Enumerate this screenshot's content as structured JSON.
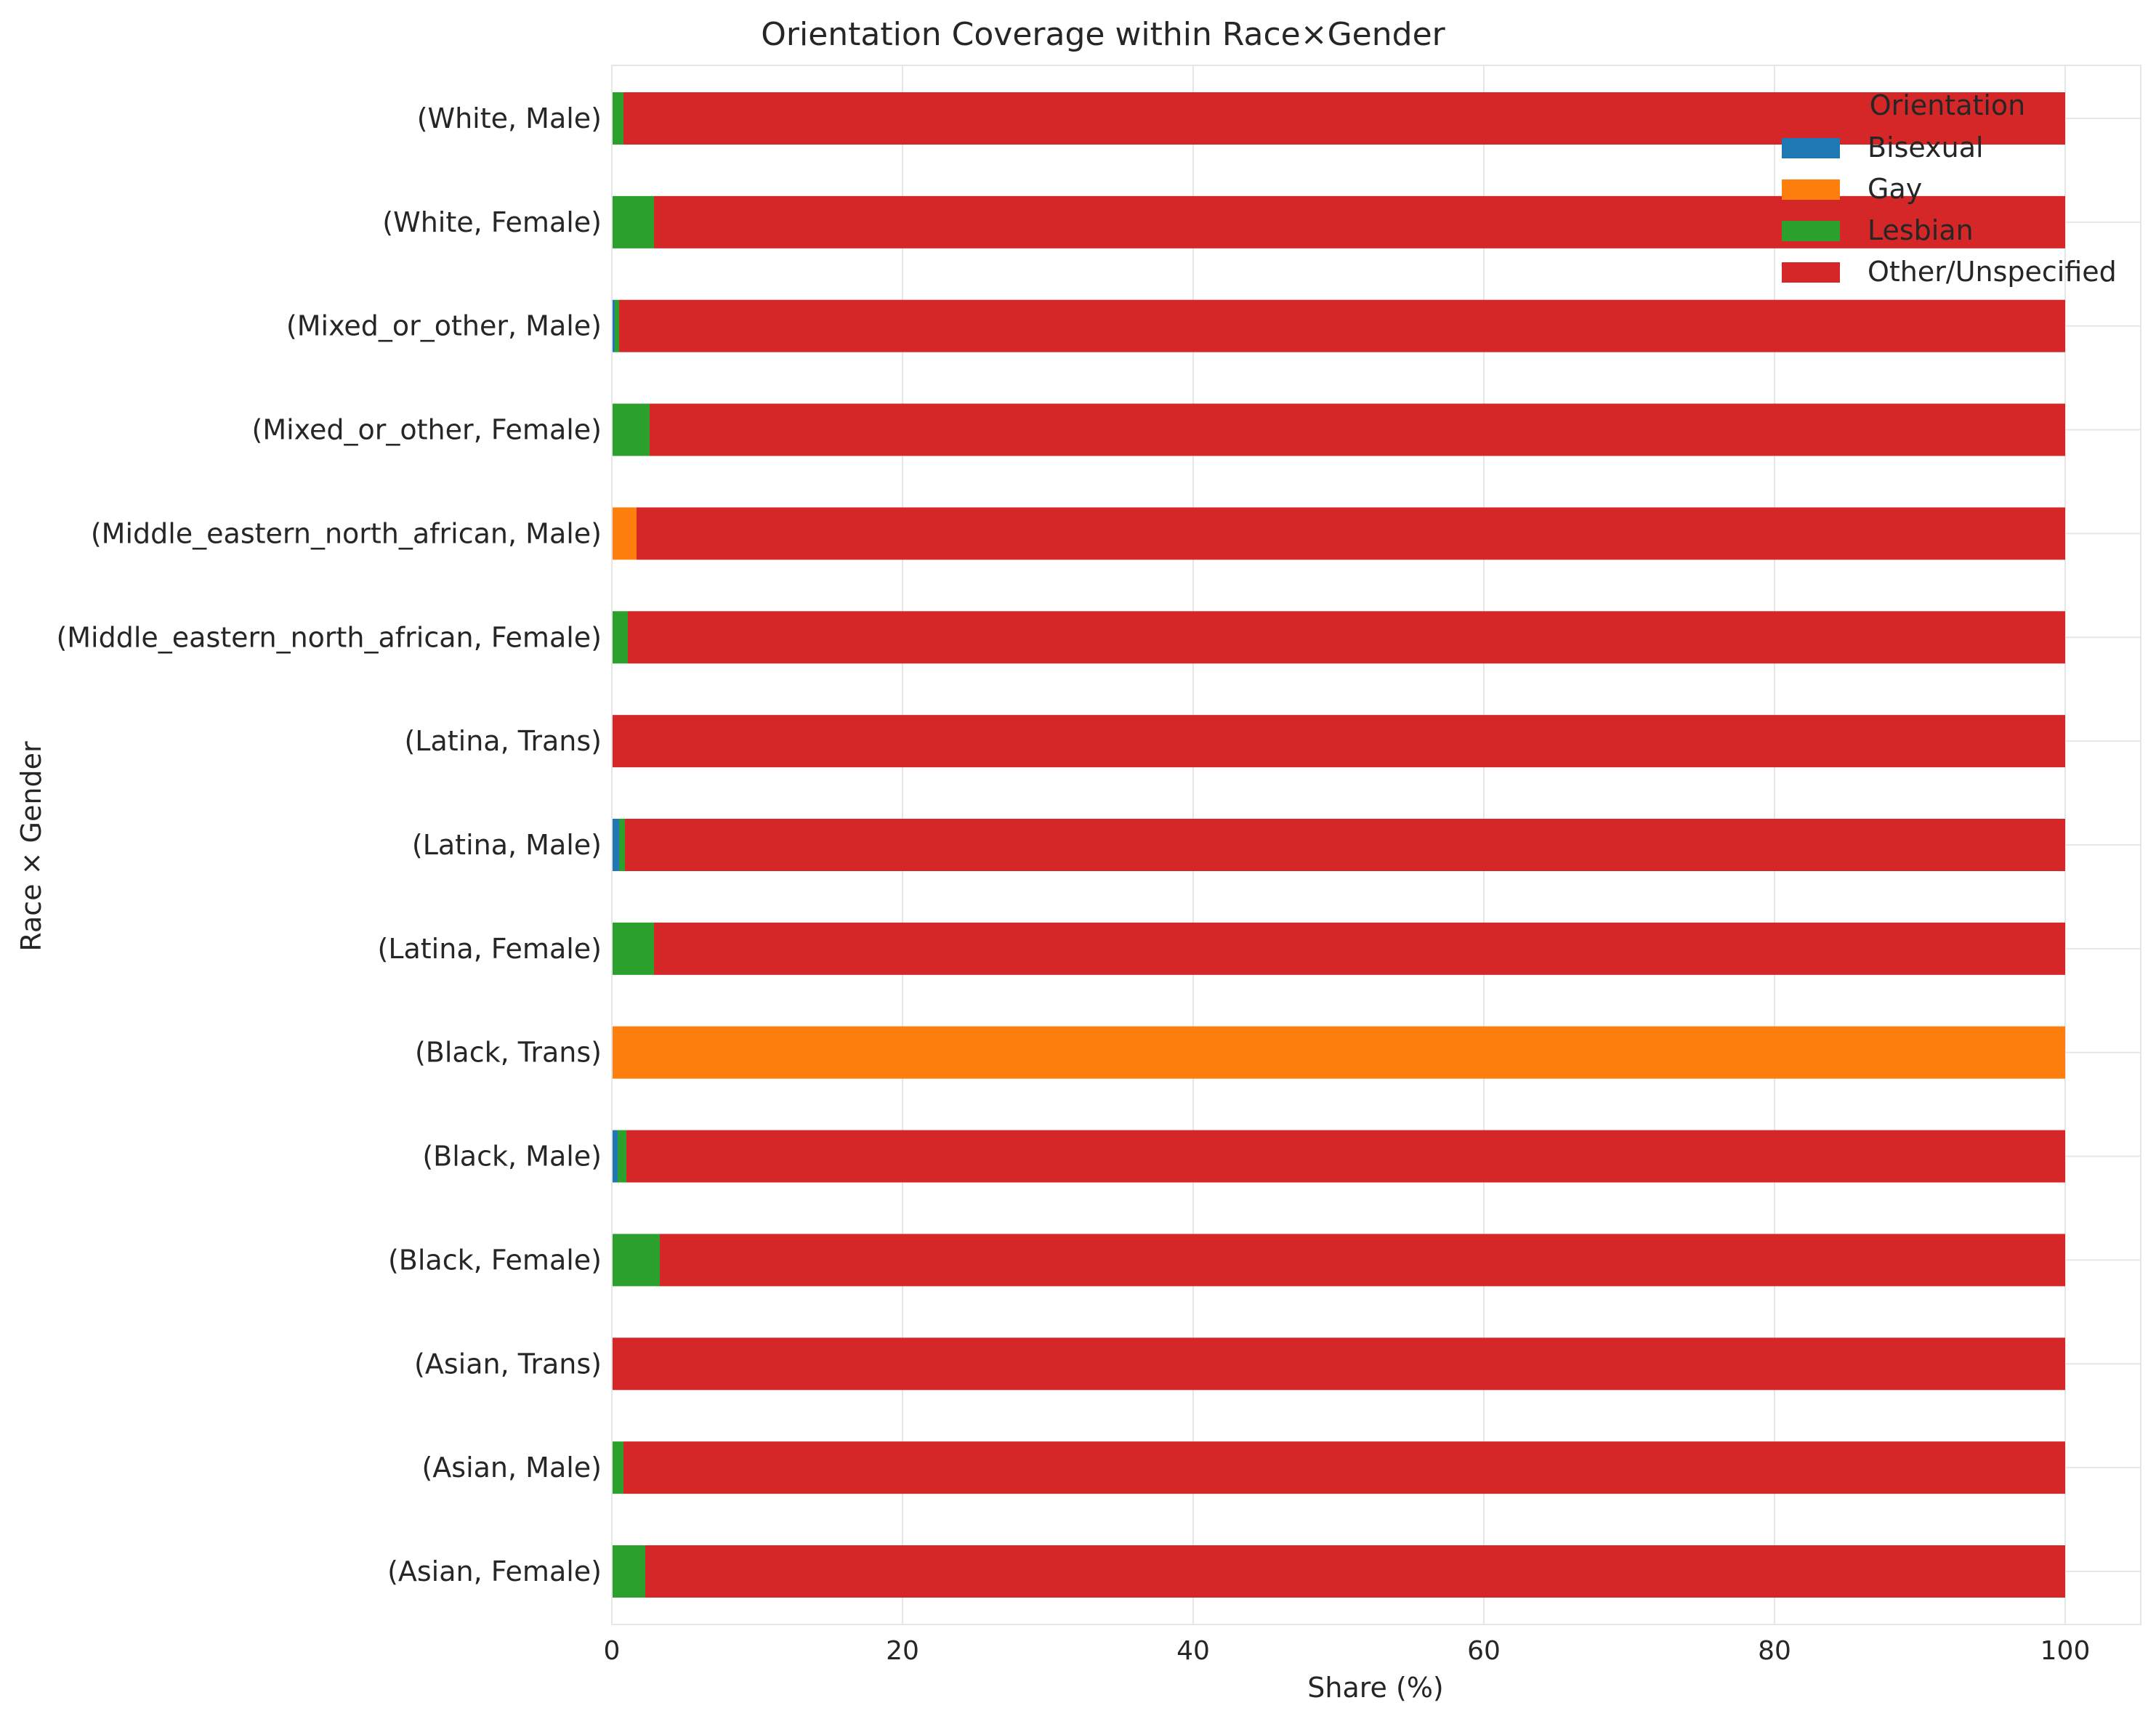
{
  "chart_data": {
    "type": "bar",
    "orientation": "horizontal",
    "stacked": true,
    "title": "Orientation Coverage within Race×Gender",
    "xlabel": "Share (%)",
    "ylabel": "Race × Gender",
    "xlim": [
      0,
      105
    ],
    "xticks": [
      0,
      20,
      40,
      60,
      80,
      100
    ],
    "xtick_labels": [
      "0",
      "20",
      "40",
      "60",
      "80",
      "100"
    ],
    "grid": true,
    "legend": {
      "title": "Orientation",
      "position": "top-right"
    },
    "categories": [
      "(Asian, Female)",
      "(Asian, Male)",
      "(Asian, Trans)",
      "(Black, Female)",
      "(Black, Male)",
      "(Black, Trans)",
      "(Latina, Female)",
      "(Latina, Male)",
      "(Latina, Trans)",
      "(Middle_eastern_north_african, Female)",
      "(Middle_eastern_north_african, Male)",
      "(Mixed_or_other, Female)",
      "(Mixed_or_other, Male)",
      "(White, Female)",
      "(White, Male)"
    ],
    "series": [
      {
        "name": "Bisexual",
        "color": "#1f77b4",
        "values": [
          0,
          0,
          0,
          0,
          0.4,
          0,
          0,
          0.5,
          0,
          0,
          0,
          0,
          0.2,
          0,
          0
        ]
      },
      {
        "name": "Gay",
        "color": "#ff7f0e",
        "values": [
          0,
          0,
          0,
          0,
          0,
          100,
          0,
          0,
          0,
          0,
          1.7,
          0,
          0,
          0,
          0
        ]
      },
      {
        "name": "Lesbian",
        "color": "#2ca02c",
        "values": [
          2.3,
          0.8,
          0,
          3.3,
          0.6,
          0,
          2.9,
          0.4,
          0,
          1.1,
          0,
          2.6,
          0.3,
          2.9,
          0.8
        ]
      },
      {
        "name": "Other/Unspecified",
        "color": "#d62728",
        "values": [
          97.7,
          99.2,
          100,
          96.7,
          99.0,
          0,
          97.1,
          99.1,
          100,
          98.9,
          98.3,
          97.4,
          99.5,
          97.1,
          99.2
        ]
      }
    ]
  }
}
